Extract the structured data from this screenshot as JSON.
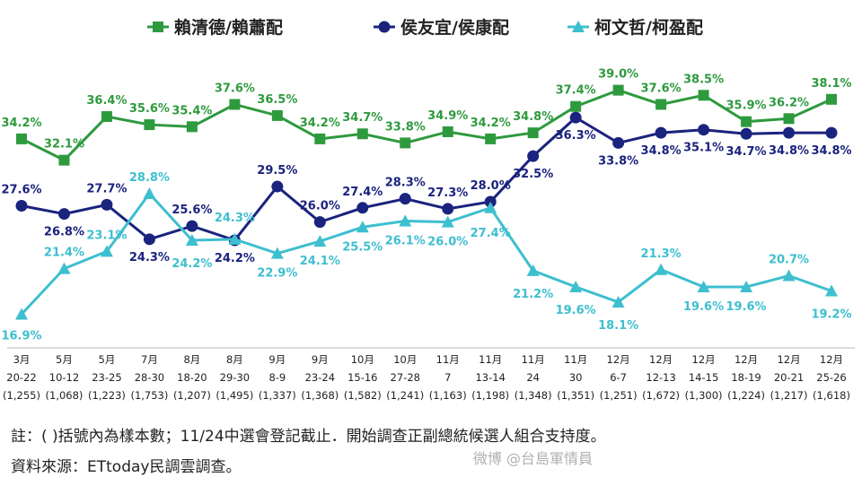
{
  "chart_data": {
    "type": "line",
    "categories": [
      {
        "month": "3月",
        "days": "20-22",
        "n": "(1,255)"
      },
      {
        "month": "5月",
        "days": "10-12",
        "n": "(1,068)"
      },
      {
        "month": "5月",
        "days": "23-25",
        "n": "(1,223)"
      },
      {
        "month": "7月",
        "days": "28-30",
        "n": "(1,753)"
      },
      {
        "month": "8月",
        "days": "18-20",
        "n": "(1,207)"
      },
      {
        "month": "8月",
        "days": "29-30",
        "n": "(1,495)"
      },
      {
        "month": "9月",
        "days": "8-9",
        "n": "(1,337)"
      },
      {
        "month": "9月",
        "days": "23-24",
        "n": "(1,368)"
      },
      {
        "month": "10月",
        "days": "15-16",
        "n": "(1,582)"
      },
      {
        "month": "10月",
        "days": "27-28",
        "n": "(1,241)"
      },
      {
        "month": "11月",
        "days": "7",
        "n": "(1,163)"
      },
      {
        "month": "11月",
        "days": "13-14",
        "n": "(1,198)"
      },
      {
        "month": "11月",
        "days": "24",
        "n": "(1,348)"
      },
      {
        "month": "11月",
        "days": "30",
        "n": "(1,351)"
      },
      {
        "month": "12月",
        "days": "6-7",
        "n": "(1,251)"
      },
      {
        "month": "12月",
        "days": "12-13",
        "n": "(1,672)"
      },
      {
        "month": "12月",
        "days": "14-15",
        "n": "(1,300)"
      },
      {
        "month": "12月",
        "days": "18-19",
        "n": "(1,224)"
      },
      {
        "month": "12月",
        "days": "20-21",
        "n": "(1,217)"
      },
      {
        "month": "12月",
        "days": "25-26",
        "n": "(1,618)"
      }
    ],
    "series": [
      {
        "name": "賴清德/賴蕭配",
        "color": "#2e9a3e",
        "marker": "square",
        "values": [
          34.2,
          32.1,
          36.4,
          35.6,
          35.4,
          37.6,
          36.5,
          34.2,
          34.7,
          33.8,
          34.9,
          34.2,
          34.8,
          37.4,
          39.0,
          37.6,
          38.5,
          35.9,
          36.2,
          38.1
        ],
        "labels": [
          "34.2%",
          "32.1%",
          "36.4%",
          "35.6%",
          "35.4%",
          "37.6%",
          "36.5%",
          "34.2%",
          "34.7%",
          "33.8%",
          "34.9%",
          "34.2%",
          "34.8%",
          "37.4%",
          "39.0%",
          "37.6%",
          "38.5%",
          "35.9%",
          "36.2%",
          "38.1%"
        ]
      },
      {
        "name": "侯友宜/侯康配",
        "color": "#1a237e",
        "marker": "circle",
        "values": [
          27.6,
          26.8,
          27.7,
          24.3,
          25.6,
          24.2,
          29.5,
          26.0,
          27.4,
          28.3,
          27.3,
          28.0,
          32.5,
          36.3,
          33.8,
          34.8,
          35.1,
          34.7,
          34.8,
          34.8
        ],
        "labels": [
          "27.6%",
          "26.8%",
          "27.7%",
          "24.3%",
          "25.6%",
          "24.2%",
          "29.5%",
          "26.0%",
          "27.4%",
          "28.3%",
          "27.3%",
          "28.0%",
          "32.5%",
          "36.3%",
          "33.8%",
          "34.8%",
          "35.1%",
          "34.7%",
          "34.8%",
          "34.8%"
        ]
      },
      {
        "name": "柯文哲/柯盈配",
        "color": "#3dbfcf",
        "marker": "triangle",
        "values": [
          16.9,
          21.4,
          23.1,
          28.8,
          24.2,
          24.3,
          22.9,
          24.1,
          25.5,
          26.1,
          26.0,
          27.4,
          21.2,
          19.6,
          18.1,
          21.3,
          19.6,
          19.6,
          20.7,
          19.2
        ],
        "labels": [
          "16.9%",
          "21.4%",
          "23.1%",
          "28.8%",
          "24.2%",
          "24.3%",
          "22.9%",
          "24.1%",
          "25.5%",
          "26.1%",
          "26.0%",
          "27.4%",
          "21.2%",
          "19.6%",
          "18.1%",
          "21.3%",
          "19.6%",
          "19.6%",
          "20.7%",
          "19.2%"
        ]
      }
    ],
    "ylim": [
      15,
      41
    ],
    "grid": false,
    "legend": "top"
  },
  "notes": {
    "note1": "註：( )括號內為樣本數；11/24中選會登記截止．開始調查正副總統候選人組合支持度。",
    "note2": "資料來源：ETtoday民調雲調查。"
  },
  "watermark": "微博 @台島軍情員"
}
